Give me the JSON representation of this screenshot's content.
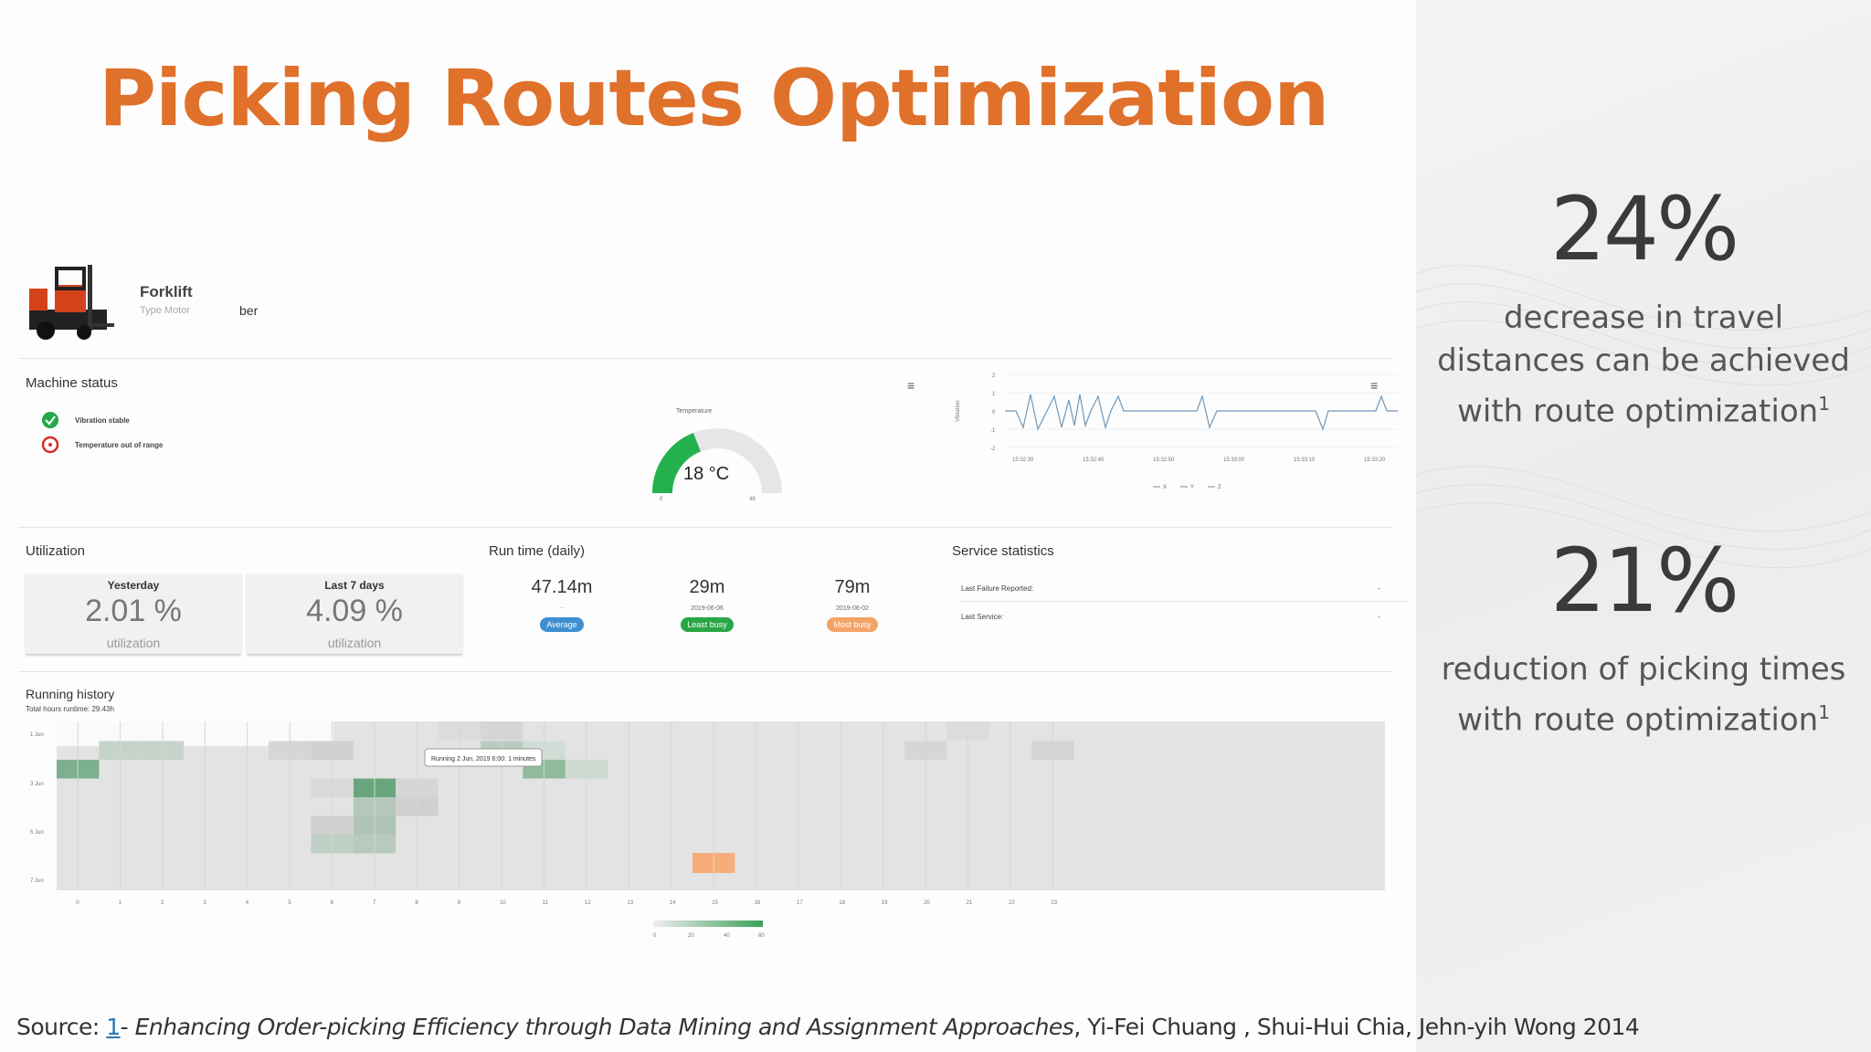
{
  "title": "Picking Routes Optimization",
  "stats": [
    {
      "value": "24%",
      "lines": [
        "decrease in travel",
        "distances can be achieved",
        "with route optimization"
      ],
      "sup": "1"
    },
    {
      "value": "21%",
      "lines": [
        "reduction of picking times",
        "with route optimization"
      ],
      "sup": "1"
    }
  ],
  "header": {
    "machine_name": "Forklift",
    "machine_type": "Type Motor",
    "cut_text": "ber"
  },
  "machine_status": {
    "title": "Machine status",
    "items": [
      {
        "label": "Vibration stable",
        "status": "ok"
      },
      {
        "label": "Temperature out of range",
        "status": "error"
      }
    ]
  },
  "gauge": {
    "title": "Temperature",
    "value_text": "18 °C",
    "min": "0",
    "max": "48",
    "fraction": 0.38,
    "color": "#22b14c"
  },
  "vibration_chart": {
    "ylabel": "Vibration",
    "yticks": [
      "2",
      "1",
      "0",
      "-1",
      "-2"
    ],
    "xticks": [
      "15:32:30",
      "15:32:40",
      "15:32:50",
      "15:33:00",
      "15:33:10",
      "15:33:20"
    ],
    "legend": [
      "X",
      "Y",
      "Z"
    ]
  },
  "utilization": {
    "title": "Utilization",
    "cards": [
      {
        "label": "Yesterday",
        "value": "2.01 %",
        "sub": "utilization"
      },
      {
        "label": "Last 7 days",
        "value": "4.09 %",
        "sub": "utilization"
      }
    ]
  },
  "runtime": {
    "title": "Run time (daily)",
    "cols": [
      {
        "value": "47.14m",
        "date": "-",
        "pill": "Average",
        "color": "#3d8fd1"
      },
      {
        "value": "29m",
        "date": "2019-06-06",
        "pill": "Least busy",
        "color": "#27a745"
      },
      {
        "value": "79m",
        "date": "2019-06-02",
        "pill": "Most busy",
        "color": "#f5a266"
      }
    ]
  },
  "service": {
    "title": "Service statistics",
    "rows": [
      {
        "label": "Last Failure Reported:",
        "value": "-"
      },
      {
        "label": "Last Service:",
        "value": "-"
      }
    ]
  },
  "history": {
    "title": "Running history",
    "subtitle": "Total hours runtime: 29.43h",
    "tooltip": "Running 2 Jun, 2019 6:00: 1 minutes",
    "ylabels": [
      "1 Jun",
      "3 Jun",
      "5 Jun",
      "7 Jun"
    ],
    "xlabels": [
      "0",
      "1",
      "2",
      "3",
      "4",
      "5",
      "6",
      "7",
      "8",
      "9",
      "10",
      "11",
      "12",
      "13",
      "14",
      "15",
      "16",
      "17",
      "18",
      "19",
      "20",
      "21",
      "22",
      "23"
    ],
    "legend_ticks": [
      "0",
      "20",
      "40",
      "60"
    ]
  },
  "source": {
    "prefix": "Source: ",
    "ref": "1",
    "dash": "- ",
    "italic": "Enhancing Order-picking Efficiency through Data Mining and Assignment Approaches",
    "rest": ", Yi-Fei Chuang , Shui-Hui Chia, Jehn-yih Wong 2014"
  }
}
